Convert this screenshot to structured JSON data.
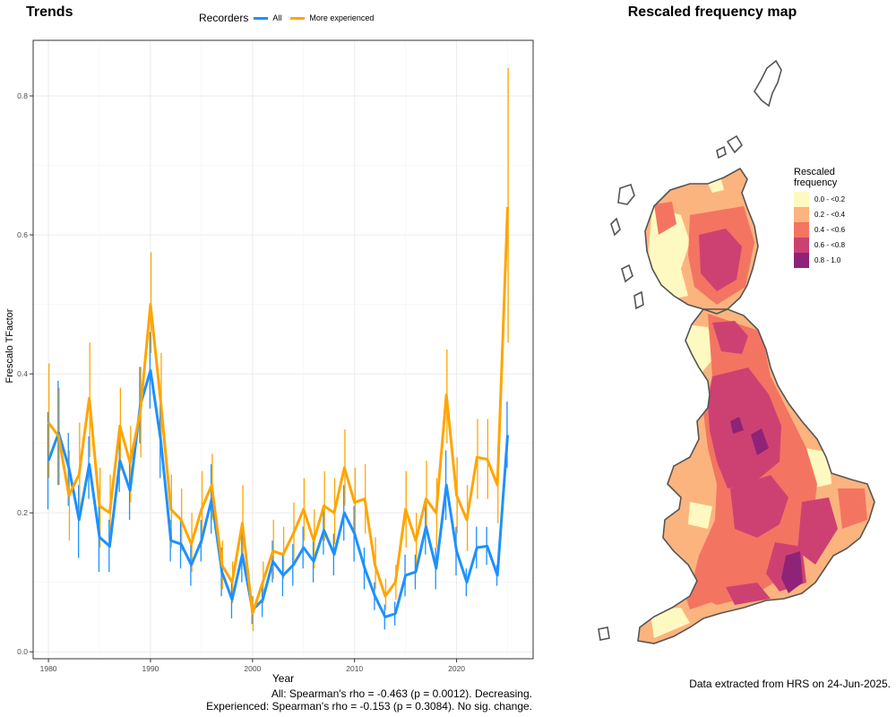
{
  "titles": {
    "trends": "Trends",
    "map": "Rescaled frequency map"
  },
  "chart_data": [
    {
      "type": "line",
      "title": "Trends",
      "xlabel": "Year",
      "ylabel": "Frescalo TFactor",
      "xlim": [
        1978.5,
        2027.5
      ],
      "ylim": [
        -0.01,
        0.88
      ],
      "xticks": [
        1980,
        1990,
        2000,
        2010,
        2020
      ],
      "yticks": [
        0.0,
        0.2,
        0.4,
        0.6,
        0.8
      ],
      "grid": true,
      "legend": {
        "title": "Recorders",
        "position": "top",
        "entries": [
          "All",
          "More experienced"
        ]
      },
      "x": [
        1980,
        1981,
        1982,
        1983,
        1984,
        1985,
        1986,
        1987,
        1988,
        1989,
        1990,
        1991,
        1992,
        1993,
        1994,
        1995,
        1996,
        1997,
        1998,
        1999,
        2000,
        2001,
        2002,
        2003,
        2004,
        2005,
        2006,
        2007,
        2008,
        2009,
        2010,
        2011,
        2012,
        2013,
        2014,
        2015,
        2016,
        2017,
        2018,
        2019,
        2020,
        2021,
        2022,
        2023,
        2024,
        2025
      ],
      "series": [
        {
          "name": "All",
          "color": "#1e90ff",
          "values": [
            0.275,
            0.315,
            0.265,
            0.19,
            0.27,
            0.165,
            0.152,
            0.275,
            0.232,
            0.355,
            0.405,
            0.305,
            0.16,
            0.155,
            0.125,
            0.16,
            0.22,
            0.115,
            0.075,
            0.14,
            0.06,
            0.075,
            0.13,
            0.11,
            0.125,
            0.15,
            0.13,
            0.175,
            0.14,
            0.2,
            0.17,
            0.12,
            0.08,
            0.05,
            0.055,
            0.11,
            0.115,
            0.18,
            0.12,
            0.24,
            0.145,
            0.1,
            0.15,
            0.152,
            0.11,
            0.312
          ],
          "lower": [
            0.205,
            0.24,
            0.21,
            0.135,
            0.22,
            0.115,
            0.115,
            0.23,
            0.19,
            0.3,
            0.35,
            0.25,
            0.13,
            0.12,
            0.095,
            0.13,
            0.17,
            0.08,
            0.048,
            0.1,
            0.04,
            0.05,
            0.1,
            0.08,
            0.095,
            0.12,
            0.1,
            0.14,
            0.11,
            0.16,
            0.13,
            0.09,
            0.06,
            0.032,
            0.038,
            0.08,
            0.09,
            0.14,
            0.09,
            0.19,
            0.11,
            0.08,
            0.12,
            0.125,
            0.095,
            0.265
          ],
          "upper": [
            0.345,
            0.39,
            0.315,
            0.24,
            0.31,
            0.215,
            0.19,
            0.32,
            0.275,
            0.41,
            0.46,
            0.36,
            0.19,
            0.19,
            0.155,
            0.19,
            0.27,
            0.15,
            0.1,
            0.18,
            0.08,
            0.1,
            0.16,
            0.14,
            0.155,
            0.18,
            0.16,
            0.21,
            0.17,
            0.24,
            0.21,
            0.15,
            0.1,
            0.068,
            0.072,
            0.14,
            0.14,
            0.22,
            0.15,
            0.29,
            0.18,
            0.12,
            0.18,
            0.18,
            0.125,
            0.36
          ]
        },
        {
          "name": "More experienced",
          "color": "#ffa500",
          "values": [
            0.33,
            0.31,
            0.225,
            0.255,
            0.365,
            0.21,
            0.2,
            0.325,
            0.272,
            0.345,
            0.5,
            0.36,
            0.205,
            0.19,
            0.155,
            0.205,
            0.24,
            0.125,
            0.1,
            0.185,
            0.055,
            0.1,
            0.145,
            0.14,
            0.17,
            0.205,
            0.16,
            0.21,
            0.2,
            0.265,
            0.215,
            0.22,
            0.125,
            0.08,
            0.1,
            0.205,
            0.16,
            0.22,
            0.2,
            0.37,
            0.225,
            0.19,
            0.28,
            0.277,
            0.24,
            0.64
          ],
          "lower": [
            0.25,
            0.24,
            0.16,
            0.19,
            0.28,
            0.15,
            0.15,
            0.26,
            0.215,
            0.28,
            0.43,
            0.29,
            0.15,
            0.145,
            0.115,
            0.155,
            0.19,
            0.09,
            0.07,
            0.13,
            0.03,
            0.07,
            0.105,
            0.105,
            0.13,
            0.16,
            0.12,
            0.16,
            0.155,
            0.21,
            0.165,
            0.17,
            0.09,
            0.06,
            0.075,
            0.15,
            0.12,
            0.17,
            0.15,
            0.3,
            0.17,
            0.145,
            0.22,
            0.22,
            0.185,
            0.445
          ],
          "upper": [
            0.415,
            0.38,
            0.29,
            0.33,
            0.445,
            0.265,
            0.255,
            0.38,
            0.325,
            0.41,
            0.575,
            0.43,
            0.255,
            0.235,
            0.2,
            0.26,
            0.285,
            0.16,
            0.13,
            0.24,
            0.08,
            0.13,
            0.19,
            0.18,
            0.215,
            0.25,
            0.205,
            0.26,
            0.25,
            0.32,
            0.265,
            0.27,
            0.165,
            0.105,
            0.125,
            0.26,
            0.2,
            0.275,
            0.25,
            0.435,
            0.28,
            0.24,
            0.335,
            0.335,
            0.295,
            0.84
          ]
        }
      ]
    },
    {
      "type": "heatmap",
      "title": "Rescaled frequency map",
      "legend": {
        "title_line1": "Rescaled",
        "title_line2": "frequency",
        "position": "right",
        "bins": [
          {
            "label": "0.0 - <0.2",
            "color": "#fdf9c0"
          },
          {
            "label": "0.2 - <0.4",
            "color": "#fcb47e"
          },
          {
            "label": "0.4 - <0.6",
            "color": "#f47462"
          },
          {
            "label": "0.6 - <0.8",
            "color": "#cd4172"
          },
          {
            "label": "0.8 - 1.0",
            "color": "#8f2378"
          }
        ]
      },
      "outline_color": "#555555"
    }
  ],
  "stats": {
    "all": "All: Spearman's rho = -0.463 (p = 0.0012). Decreasing.",
    "experienced": "Experienced: Spearman's rho = -0.153 (p = 0.3084). No sig. change."
  },
  "footer": "Data extracted from HRS on 24-Jun-2025."
}
